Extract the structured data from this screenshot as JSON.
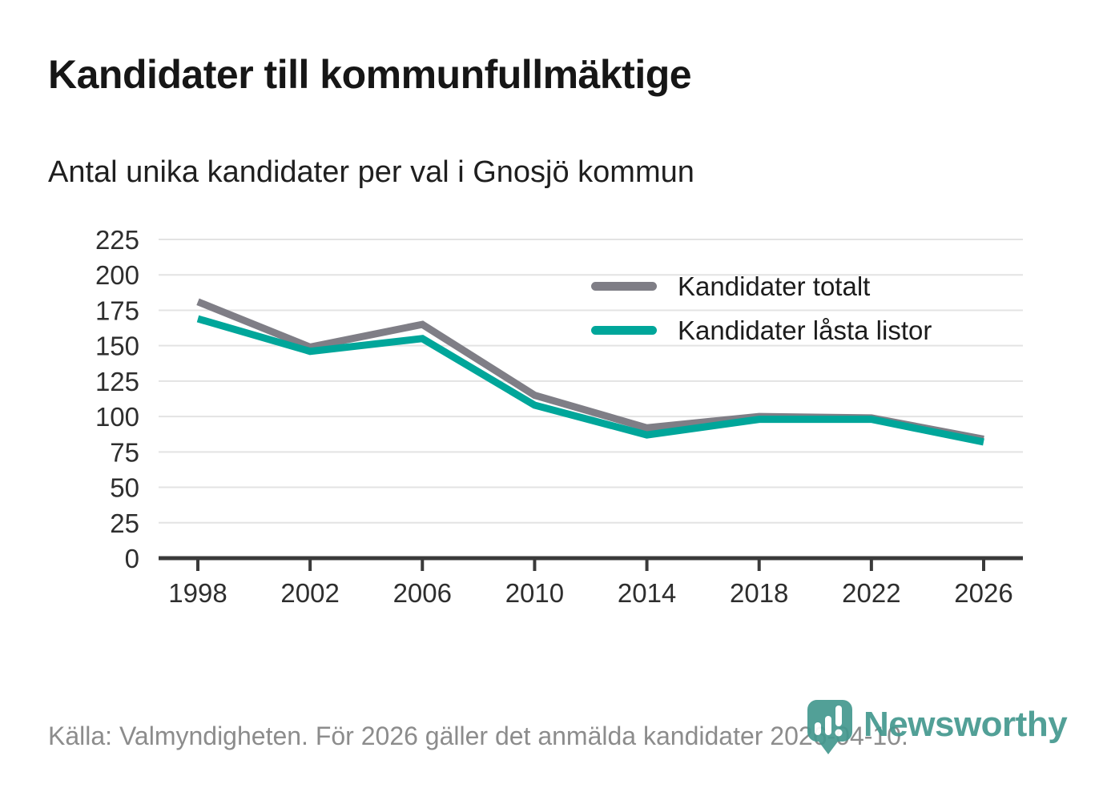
{
  "page": {
    "title": "Kandidater till kommunfullmäktige",
    "subtitle": "Antal unika kandidater per val i Gnosjö kommun",
    "source": "Källa: Valmyndigheten. För 2026 gäller det anmälda kandidater 2026-04-10.",
    "brand": "Newsworthy"
  },
  "colors": {
    "series_total": "#7f7e86",
    "series_locked": "#00a69a",
    "gridline": "#e3e3e3",
    "axis": "#3a3a3a",
    "tick_label": "#2e2e2e",
    "title_text": "#161616",
    "footer_text": "#8c8c8c",
    "logo_teal": "#44988f"
  },
  "chart_data": {
    "type": "line",
    "title": "Kandidater till kommunfullmäktige",
    "subtitle": "Antal unika kandidater per val i Gnosjö kommun",
    "categories": [
      "1998",
      "2002",
      "2006",
      "2010",
      "2014",
      "2018",
      "2022",
      "2026"
    ],
    "series": [
      {
        "name": "Kandidater totalt",
        "color": "#7f7e86",
        "values": [
          181,
          149,
          165,
          115,
          92,
          100,
          99,
          84
        ]
      },
      {
        "name": "Kandidater låsta listor",
        "color": "#00a69a",
        "values": [
          169,
          146,
          155,
          108,
          87,
          98,
          98,
          82
        ]
      }
    ],
    "xlabel": "",
    "ylabel": "",
    "ylim": [
      0,
      225
    ],
    "ytick_step": 25,
    "grid": "horizontal",
    "legend_position": "top-right-inside"
  }
}
